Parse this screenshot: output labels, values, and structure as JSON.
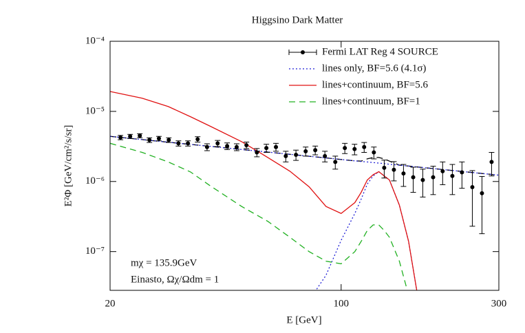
{
  "chart_data": {
    "type": "line",
    "title": "Higgsino Dark Matter",
    "x_label": "E [GeV]",
    "y_label": "E²Φ [GeV/cm²/s/sr]",
    "log_x": true,
    "log_y": true,
    "xlim": [
      20,
      300
    ],
    "ylim": [
      2.8e-08,
      0.0001
    ],
    "xticks": [
      20,
      100,
      300
    ],
    "yticks": [
      {
        "value": 1e-07,
        "label": "10⁻⁷"
      },
      {
        "value": 1e-06,
        "label": "10⁻⁶"
      },
      {
        "value": 1e-05,
        "label": "10⁻⁵"
      },
      {
        "value": 0.0001,
        "label": "10⁻⁴"
      }
    ],
    "legend_position": "upper right",
    "annotations": [
      "mχ = 135.9GeV",
      "Einasto, Ωχ/Ωdm = 1"
    ],
    "series": [
      {
        "name": "Fermi LAT Reg 4 SOURCE",
        "style": "errorbar",
        "color": "#000000",
        "x": [
          21.5,
          23.0,
          24.6,
          26.3,
          28.1,
          30.1,
          32.2,
          34.4,
          36.8,
          39.3,
          42.3,
          45.2,
          48.3,
          51.7,
          55.6,
          59.4,
          63.5,
          68.0,
          73.0,
          78.1,
          83.5,
          89.3,
          96.0,
          102.6,
          109.8,
          117.4,
          125.6,
          135.0,
          144.4,
          154.4,
          165.2,
          176.6,
          189.8,
          202.8,
          217.0,
          232.0,
          249.4,
          266.7,
          285.2
        ],
        "values": [
          4.24e-06,
          4.4e-06,
          4.5e-06,
          3.9e-06,
          4.1e-06,
          3.9e-06,
          3.5e-06,
          3.5e-06,
          4e-06,
          3.1e-06,
          3.5e-06,
          3.2e-06,
          3.1e-06,
          3.3e-06,
          2.6e-06,
          3e-06,
          3.1e-06,
          2.3e-06,
          2.4e-06,
          2.7e-06,
          2.8e-06,
          2.3e-06,
          1.9e-06,
          3e-06,
          2.9e-06,
          3.1e-06,
          2.6e-06,
          1.57e-06,
          1.47e-06,
          1.3e-06,
          1.15e-06,
          1.05e-06,
          1.15e-06,
          1.4e-06,
          1.2e-06,
          1.35e-06,
          8.3e-07,
          6.8e-07,
          1.9e-06
        ],
        "errors": [
          3e-07,
          3e-07,
          3e-07,
          3e-07,
          3e-07,
          3e-07,
          3e-07,
          3e-07,
          3.5e-07,
          3.5e-07,
          3.5e-07,
          3.5e-07,
          3.5e-07,
          3.5e-07,
          3.5e-07,
          4e-07,
          4e-07,
          4e-07,
          4e-07,
          4e-07,
          4e-07,
          4e-07,
          4e-07,
          5e-07,
          5e-07,
          5e-07,
          5e-07,
          4.5e-07,
          4.5e-07,
          4.5e-07,
          4.5e-07,
          4.5e-07,
          5e-07,
          5e-07,
          5.5e-07,
          5.5e-07,
          6e-07,
          5e-07,
          7e-07
        ]
      },
      {
        "name": "lines only, BF=5.6 (4.1σ)",
        "style": "dotted",
        "color": "#1f1fd6",
        "x": [
          20,
          25,
          30,
          35,
          40,
          50,
          60,
          70,
          80,
          90,
          100,
          110,
          115,
          120,
          125,
          130,
          135,
          140,
          150,
          160,
          170,
          200,
          250,
          300
        ],
        "values": [
          null,
          null,
          null,
          null,
          null,
          null,
          null,
          null,
          2e-08,
          4.6e-08,
          1.45e-07,
          3.5e-07,
          5.6e-07,
          9.2e-07,
          1.2e-06,
          1.38e-06,
          1.2e-06,
          1.05e-06,
          4.6e-07,
          1.4e-07,
          2.5e-08,
          null,
          null,
          null
        ]
      },
      {
        "name": "lines+continuum, BF=5.6",
        "style": "solid",
        "color": "#e01010",
        "x": [
          20,
          25,
          30,
          35,
          40,
          50,
          60,
          70,
          80,
          90,
          100,
          110,
          115,
          120,
          125,
          130,
          135,
          140,
          150,
          160,
          170,
          200,
          250,
          300
        ],
        "values": [
          1.92e-05,
          1.54e-05,
          1.17e-05,
          8.4e-06,
          6.2e-06,
          3.7e-06,
          2.2e-06,
          1.4e-06,
          8.4e-07,
          4.4e-07,
          3.5e-07,
          5e-07,
          7e-07,
          1.05e-06,
          1.25e-06,
          1.38e-06,
          1.2e-06,
          1.05e-06,
          4.6e-07,
          1.4e-07,
          2.5e-08,
          null,
          null,
          null
        ]
      },
      {
        "name": "lines+continuum, BF=1",
        "style": "dashed",
        "color": "#20b020",
        "x": [
          20,
          25,
          30,
          35,
          40,
          50,
          60,
          70,
          80,
          90,
          100,
          110,
          115,
          120,
          125,
          130,
          135,
          140,
          150,
          160,
          170,
          200,
          250,
          300
        ],
        "values": [
          3.5e-06,
          2.6e-06,
          1.9e-06,
          1.37e-06,
          8.8e-07,
          4.4e-07,
          2.7e-07,
          1.6e-07,
          1e-07,
          7.3e-08,
          6.7e-08,
          1e-07,
          1.4e-07,
          2e-07,
          2.4e-07,
          2.4e-07,
          2e-07,
          1.6e-07,
          7.3e-08,
          2.4e-08,
          null,
          null,
          null,
          null
        ]
      },
      {
        "style": "dashed",
        "color": "#000000",
        "x": [
          20,
          25,
          30,
          35,
          40,
          50,
          60,
          70,
          80,
          90,
          100,
          110,
          115,
          120,
          125,
          130,
          135,
          140,
          150,
          160,
          170,
          200,
          250,
          300
        ],
        "values": [
          4.4e-06,
          3.96e-06,
          3.63e-06,
          3.38e-06,
          3.18e-06,
          2.86e-06,
          2.63e-06,
          2.44e-06,
          2.29e-06,
          2.17e-06,
          2.06e-06,
          1.97e-06,
          1.95e-06,
          2.1e-06,
          2.2e-06,
          2.2e-06,
          2.1e-06,
          1.95e-06,
          1.71e-06,
          1.66e-06,
          1.61e-06,
          1.49e-06,
          1.34e-06,
          1.23e-06
        ]
      },
      {
        "style": "dotted",
        "color": "#1f1fd6",
        "x": [
          20,
          25,
          30,
          35,
          40,
          50,
          60,
          70,
          80,
          90,
          100,
          110,
          115,
          120,
          125,
          130,
          135,
          140,
          150,
          160,
          170,
          200,
          250,
          300
        ],
        "values": [
          4.4e-06,
          3.96e-06,
          3.63e-06,
          3.38e-06,
          3.18e-06,
          2.86e-06,
          2.63e-06,
          2.44e-06,
          2.29e-06,
          2.17e-06,
          2.06e-06,
          1.97e-06,
          1.93e-06,
          1.9e-06,
          1.86e-06,
          1.83e-06,
          1.8e-06,
          1.76e-06,
          1.71e-06,
          1.66e-06,
          1.61e-06,
          1.49e-06,
          1.34e-06,
          1.23e-06
        ]
      }
    ]
  }
}
